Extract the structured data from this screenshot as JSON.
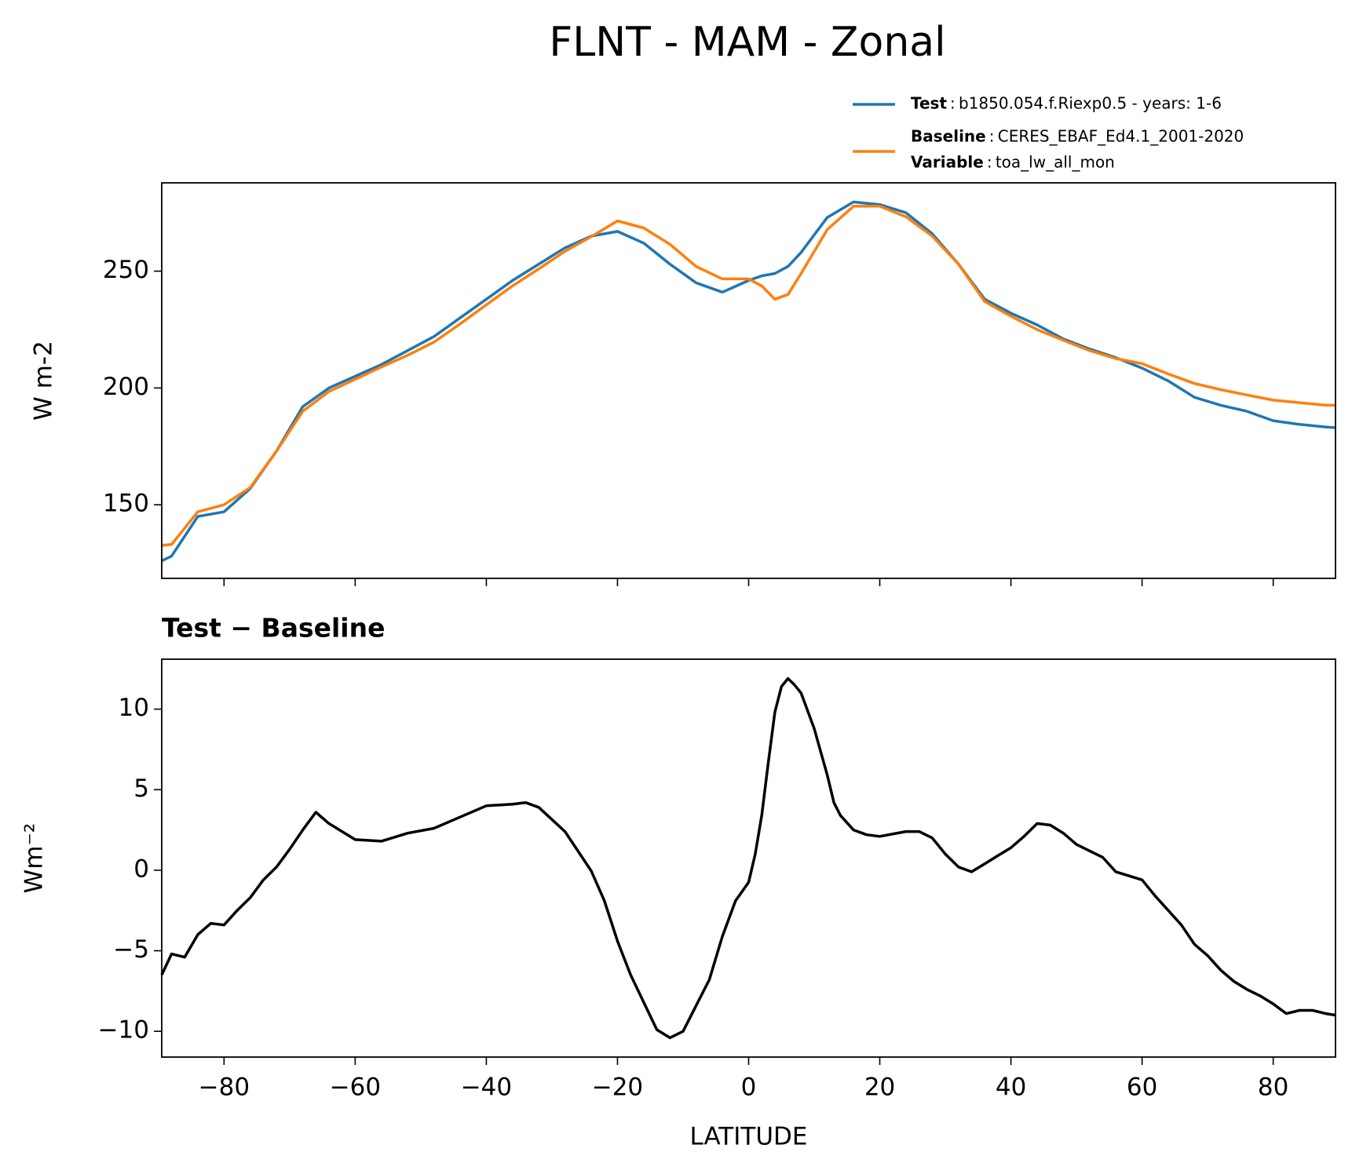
{
  "chart_data": [
    {
      "type": "line",
      "title": "FLNT - MAM - Zonal",
      "ylabel": "W m-2",
      "x": [
        -89.5,
        -88,
        -84,
        -80,
        -76,
        -72,
        -68,
        -64,
        -60,
        -56,
        -52,
        -48,
        -44,
        -40,
        -36,
        -32,
        -28,
        -24,
        -20,
        -16,
        -12,
        -8,
        -4,
        0,
        2,
        4,
        6,
        8,
        12,
        16,
        20,
        24,
        28,
        32,
        36,
        40,
        44,
        48,
        52,
        56,
        60,
        64,
        68,
        72,
        76,
        80,
        84,
        88,
        89.5
      ],
      "series": [
        {
          "name": "Test",
          "label": "b1850.054.f.Riexp0.5 - years: 1-6",
          "color": "#1f77b4",
          "values": [
            126,
            128,
            145,
            147,
            157,
            173,
            192,
            200,
            205,
            210,
            216,
            222,
            230,
            238,
            246,
            253,
            260,
            265,
            267,
            262,
            253,
            245,
            241,
            246,
            248,
            249,
            252,
            258,
            273,
            279.6,
            278.5,
            275,
            266,
            253,
            238,
            232,
            227,
            221,
            216.7,
            213,
            208.5,
            203,
            196,
            192.6,
            190,
            186,
            184.4,
            183.3,
            183
          ]
        },
        {
          "name": "Baseline",
          "label": "CERES_EBAF_Ed4.1_2001-2020",
          "color": "#ff7f0e",
          "values": [
            132.6,
            133,
            147,
            150,
            157.4,
            173,
            190,
            198.5,
            203.7,
            209,
            214,
            219.6,
            227.4,
            235.6,
            243.7,
            251,
            258.5,
            264.8,
            271.5,
            268.5,
            261.5,
            252,
            246.7,
            246.7,
            243.7,
            238,
            240,
            249,
            267.8,
            277.8,
            277.8,
            273.3,
            265,
            253,
            237,
            230.7,
            225,
            220.4,
            216,
            212.6,
            210.4,
            206,
            201.9,
            199.3,
            197,
            194.8,
            193.7,
            192.6,
            192.6
          ]
        }
      ],
      "variable": {
        "name": "Variable",
        "label": "toa_lw_all_mon"
      },
      "xlim": [
        -89.5,
        89.5
      ],
      "ylim": [
        118.5,
        287.8
      ],
      "xticks": [
        -80,
        -60,
        -40,
        -20,
        0,
        20,
        40,
        60,
        80
      ],
      "yticks": [
        150,
        200,
        250
      ]
    },
    {
      "type": "line",
      "title": "Test − Baseline",
      "ylabel": "Wm⁻²",
      "xlabel": "LATITUDE",
      "x": [
        -89.5,
        -88,
        -86,
        -84,
        -82,
        -80,
        -78,
        -76,
        -74,
        -72,
        -70,
        -68,
        -66,
        -64,
        -62,
        -60,
        -56,
        -52,
        -48,
        -44,
        -40,
        -36,
        -34,
        -32,
        -28,
        -24,
        -22,
        -20,
        -18,
        -16,
        -14,
        -12,
        -10,
        -8,
        -6,
        -4,
        -2,
        0,
        1,
        2,
        3,
        4,
        5,
        6,
        7,
        8,
        10,
        12,
        13,
        14,
        16,
        18,
        20,
        24,
        26,
        28,
        30,
        32,
        34,
        36,
        38,
        40,
        42,
        44,
        46,
        48,
        50,
        54,
        56,
        60,
        62,
        64,
        66,
        68,
        70,
        72,
        74,
        76,
        78,
        80,
        82,
        84,
        86,
        88,
        89.5
      ],
      "series": [
        {
          "color": "#000000",
          "values": [
            -6.5,
            -5.2,
            -5.4,
            -4.0,
            -3.3,
            -3.4,
            -2.5,
            -1.7,
            -0.6,
            0.2,
            1.3,
            2.5,
            3.6,
            2.9,
            2.4,
            1.9,
            1.8,
            2.3,
            2.6,
            3.3,
            4.0,
            4.1,
            4.2,
            3.9,
            2.4,
            -0.05,
            -1.9,
            -4.4,
            -6.5,
            -8.2,
            -9.9,
            -10.4,
            -10.0,
            -8.4,
            -6.8,
            -4.1,
            -1.9,
            -0.75,
            1.0,
            3.4,
            6.7,
            9.8,
            11.4,
            11.9,
            11.5,
            11.0,
            8.8,
            5.9,
            4.2,
            3.4,
            2.5,
            2.2,
            2.1,
            2.4,
            2.4,
            2.0,
            1.0,
            0.2,
            -0.1,
            0.4,
            0.9,
            1.4,
            2.1,
            2.9,
            2.8,
            2.3,
            1.6,
            0.8,
            -0.1,
            -0.6,
            -1.6,
            -2.5,
            -3.4,
            -4.6,
            -5.3,
            -6.2,
            -6.9,
            -7.4,
            -7.8,
            -8.3,
            -8.9,
            -8.7,
            -8.7,
            -8.9,
            -9.0
          ]
        }
      ],
      "xlim": [
        -89.5,
        89.5
      ],
      "ylim": [
        -11.6,
        13.1
      ],
      "xticks": [
        {
          "value": -80,
          "label": "−80"
        },
        {
          "value": -60,
          "label": "−60"
        },
        {
          "value": -40,
          "label": "−40"
        },
        {
          "value": -20,
          "label": "−20"
        },
        0,
        20,
        40,
        60,
        80
      ],
      "yticks": [
        {
          "value": -10,
          "label": "−10"
        },
        {
          "value": -5,
          "label": "−5"
        },
        0,
        5,
        10
      ]
    }
  ]
}
